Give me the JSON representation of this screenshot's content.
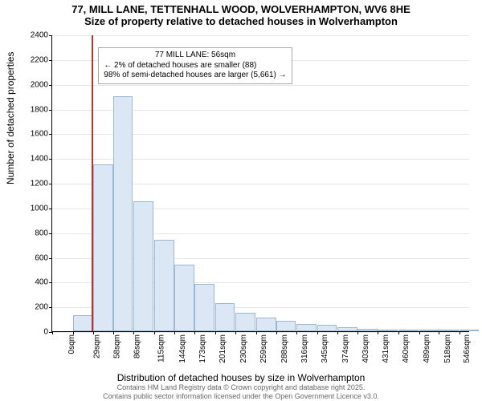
{
  "title_line1": "77, MILL LANE, TETTENHALL WOOD, WOLVERHAMPTON, WV6 8HE",
  "title_line2": "Size of property relative to detached houses in Wolverhampton",
  "ylabel": "Number of detached properties",
  "xlabel": "Distribution of detached houses by size in Wolverhampton",
  "footer_line1": "Contains HM Land Registry data © Crown copyright and database right 2025.",
  "footer_line2": "Contains public sector information licensed under the Open Government Licence v3.0.",
  "chart": {
    "type": "histogram",
    "background_color": "#ffffff",
    "grid_color": "#e6e6e6",
    "axis_color": "#000000",
    "bar_fill": "#dbe7f4",
    "bar_stroke": "#9bb8d3",
    "refline_color": "#c42f2c",
    "refline_value": 56,
    "xlim": [
      0,
      590
    ],
    "ylim": [
      0,
      2400
    ],
    "ytick_step": 200,
    "xtick_step": 29,
    "xtick_unit": "sqm",
    "tick_fontsize": 10,
    "label_fontsize": 12,
    "title_fontsize": 13,
    "categories_start": [
      0,
      29,
      58,
      86,
      115,
      144,
      173,
      201,
      230,
      259,
      288,
      316,
      345,
      374,
      403,
      431,
      460,
      489,
      518,
      546,
      575
    ],
    "bar_width_data": 28,
    "values": [
      0,
      130,
      1350,
      1900,
      1050,
      740,
      540,
      380,
      230,
      150,
      110,
      85,
      60,
      50,
      30,
      20,
      15,
      10,
      10,
      5,
      5
    ],
    "annotation": {
      "lines": [
        "77 MILL LANE: 56sqm",
        "← 2% of detached houses are smaller (88)",
        "98% of semi-detached houses are larger (5,661) →"
      ],
      "border_color": "#a8a8a8",
      "font_size": 10,
      "x_data": 65,
      "y_data": 2300
    }
  }
}
